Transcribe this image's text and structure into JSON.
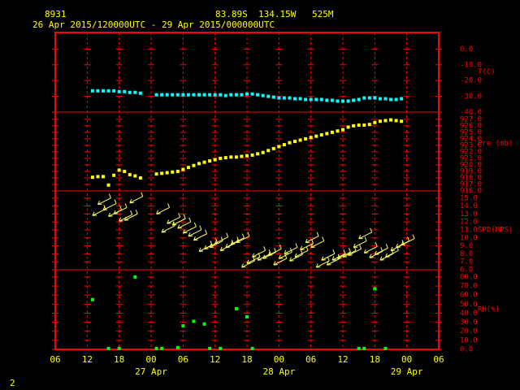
{
  "header": {
    "station": "8931",
    "lat": "83.89S",
    "lon": "134.15W",
    "elev": "525M",
    "period": "26 Apr 2015/120000UTC - 29 Apr 2015/000000UTC"
  },
  "x_axis": {
    "xlim": [
      6,
      78
    ],
    "xticks": [
      {
        "value": 6,
        "label": "06"
      },
      {
        "value": 12,
        "label": "12"
      },
      {
        "value": 18,
        "label": "18"
      },
      {
        "value": 24,
        "label": "00"
      },
      {
        "value": 30,
        "label": "06"
      },
      {
        "value": 36,
        "label": "12"
      },
      {
        "value": 42,
        "label": "18"
      },
      {
        "value": 48,
        "label": "00"
      },
      {
        "value": 54,
        "label": "06"
      },
      {
        "value": 60,
        "label": "12"
      },
      {
        "value": 66,
        "label": "18"
      },
      {
        "value": 72,
        "label": "00"
      },
      {
        "value": 78,
        "label": "06"
      }
    ],
    "date_labels": [
      {
        "value": 24,
        "label": "27 Apr"
      },
      {
        "value": 48,
        "label": "28 Apr"
      },
      {
        "value": 72,
        "label": "29 Apr"
      }
    ]
  },
  "chart_data": [
    {
      "type": "scatter",
      "ylabel": "T(C)",
      "color": "#00ffff",
      "ylim": [
        -40,
        10.5
      ],
      "yticks": [
        {
          "value": 0,
          "label": "0.0"
        },
        {
          "value": -10,
          "label": "-10.0"
        },
        {
          "value": -20,
          "label": "-20.0"
        },
        {
          "value": -30,
          "label": "-30.0"
        },
        {
          "value": -40,
          "label": "-40.0"
        }
      ],
      "x": [
        13,
        14,
        15,
        16,
        17,
        18,
        19,
        20,
        21,
        22,
        25,
        26,
        27,
        28,
        29,
        30,
        31,
        32,
        33,
        34,
        35,
        36,
        37,
        38,
        39,
        40,
        41,
        42,
        43,
        44,
        45,
        46,
        47,
        48,
        49,
        50,
        51,
        52,
        53,
        54,
        55,
        56,
        57,
        58,
        59,
        60,
        61,
        62,
        63,
        64,
        65,
        66,
        67,
        68,
        69,
        70,
        71
      ],
      "values": [
        -26.5,
        -26.5,
        -26.5,
        -26.5,
        -26.5,
        -27,
        -27,
        -27.5,
        -27.5,
        -28,
        -29,
        -29,
        -29,
        -29,
        -29,
        -29,
        -29,
        -29,
        -29,
        -29,
        -29,
        -29,
        -29,
        -29.5,
        -29,
        -29,
        -29,
        -28.5,
        -28.5,
        -29,
        -29.5,
        -30,
        -30.5,
        -31,
        -31,
        -31,
        -31.5,
        -31.5,
        -32,
        -32,
        -32,
        -32,
        -32.5,
        -32.5,
        -33,
        -33,
        -33,
        -32.5,
        -32,
        -31,
        -31,
        -31,
        -31.5,
        -31.5,
        -32,
        -32,
        -31.5
      ]
    },
    {
      "type": "scatter",
      "ylabel": "Pre (mb)",
      "color": "#ffff00",
      "ylim": [
        916,
        928.1
      ],
      "yticks": [
        {
          "value": 927,
          "label": "927.0"
        },
        {
          "value": 926,
          "label": "926.0"
        },
        {
          "value": 925,
          "label": "925.0"
        },
        {
          "value": 924,
          "label": "924.0"
        },
        {
          "value": 923,
          "label": "923.0"
        },
        {
          "value": 922,
          "label": "922.0"
        },
        {
          "value": 921,
          "label": "921.0"
        },
        {
          "value": 920,
          "label": "920.0"
        },
        {
          "value": 919,
          "label": "919.0"
        },
        {
          "value": 918,
          "label": "918.0"
        },
        {
          "value": 917,
          "label": "917.0"
        },
        {
          "value": 916,
          "label": "916.0"
        }
      ],
      "x": [
        13,
        14,
        15,
        16,
        17,
        18,
        19,
        20,
        21,
        22,
        25,
        26,
        27,
        28,
        29,
        30,
        31,
        32,
        33,
        34,
        35,
        36,
        37,
        38,
        39,
        40,
        41,
        42,
        43,
        44,
        45,
        46,
        47,
        48,
        49,
        50,
        51,
        52,
        53,
        54,
        55,
        56,
        57,
        58,
        59,
        60,
        61,
        62,
        63,
        64,
        65,
        66,
        67,
        68,
        69,
        70,
        71
      ],
      "values": [
        918.1,
        918.2,
        918.2,
        916.9,
        918.4,
        919.2,
        919.0,
        918.5,
        918.3,
        918.0,
        918.6,
        918.7,
        918.8,
        918.9,
        919.0,
        919.3,
        919.6,
        919.9,
        920.2,
        920.4,
        920.6,
        920.8,
        921.0,
        921.1,
        921.2,
        921.2,
        921.3,
        921.4,
        921.5,
        921.7,
        921.9,
        922.2,
        922.5,
        922.8,
        923.1,
        923.4,
        923.6,
        923.8,
        924.0,
        924.2,
        924.4,
        924.6,
        924.8,
        925.0,
        925.2,
        925.4,
        925.8,
        926.0,
        926.1,
        926.1,
        926.2,
        926.5,
        926.7,
        926.8,
        926.9,
        926.8,
        926.7
      ]
    },
    {
      "type": "barb",
      "ylabel": "SPD(MPS)",
      "color": "#ffff66",
      "ylim": [
        6,
        15.9
      ],
      "yticks": [
        {
          "value": 15,
          "label": "15.0"
        },
        {
          "value": 14,
          "label": "14.0"
        },
        {
          "value": 13,
          "label": "13.0"
        },
        {
          "value": 12,
          "label": "12.0"
        },
        {
          "value": 11,
          "label": "11.0"
        },
        {
          "value": 10,
          "label": "10.0"
        },
        {
          "value": 9,
          "label": "9.0"
        },
        {
          "value": 8,
          "label": "8.0"
        },
        {
          "value": 7,
          "label": "7.0"
        },
        {
          "value": 6,
          "label": "6.0"
        }
      ],
      "x": [
        13,
        14,
        15,
        16,
        17,
        18,
        19,
        20,
        21,
        22,
        25,
        26,
        27,
        28,
        29,
        30,
        31,
        32,
        33,
        34,
        35,
        36,
        37,
        38,
        39,
        40,
        41,
        42,
        43,
        44,
        45,
        46,
        47,
        48,
        49,
        50,
        51,
        52,
        53,
        54,
        55,
        56,
        57,
        58,
        59,
        60,
        61,
        62,
        63,
        64,
        65,
        66,
        67,
        68,
        69,
        70,
        71
      ],
      "values": [
        12.8,
        14.2,
        13.5,
        12.7,
        13.0,
        12.1,
        12.2,
        14.4,
        null,
        null,
        13.0,
        10.7,
        11.8,
        11.6,
        11.2,
        10.6,
        10.2,
        9.7,
        8.3,
        8.6,
        8.8,
        9.3,
        8.4,
        8.8,
        9.2,
        9.4,
        6.3,
        6.8,
        7.6,
        7.2,
        7.4,
        7.8,
        6.6,
        7.4,
        8.0,
        7.1,
        7.6,
        8.5,
        9.4,
        8.8,
        6.3,
        7.2,
        6.6,
        7.2,
        7.4,
        7.6,
        7.8,
        8.8,
        9.9,
        8.1,
        7.5,
        7.9,
        7.2,
        7.6,
        8.4,
        8.8,
        9.1
      ]
    },
    {
      "type": "scatter",
      "ylabel": "RH(%)",
      "color": "#00ff00",
      "ylim": [
        0,
        88
      ],
      "yticks": [
        {
          "value": 80,
          "label": "80.0"
        },
        {
          "value": 70,
          "label": "70.0"
        },
        {
          "value": 60,
          "label": "60.0"
        },
        {
          "value": 50,
          "label": "50.0"
        },
        {
          "value": 40,
          "label": "40.0"
        },
        {
          "value": 30,
          "label": "30.0"
        },
        {
          "value": 20,
          "label": "20.0"
        },
        {
          "value": 10,
          "label": "10.0"
        },
        {
          "value": 0,
          "label": "0.0"
        }
      ],
      "x": [
        13,
        16,
        18,
        21,
        25,
        26,
        29,
        30,
        32,
        34,
        35,
        37,
        40,
        42,
        43,
        63,
        64,
        66,
        68
      ],
      "values": [
        55,
        1,
        1,
        80,
        1,
        1,
        2,
        26,
        31,
        28,
        1,
        1,
        45,
        36,
        1,
        1,
        1,
        67,
        1
      ]
    }
  ],
  "page_number": "2"
}
